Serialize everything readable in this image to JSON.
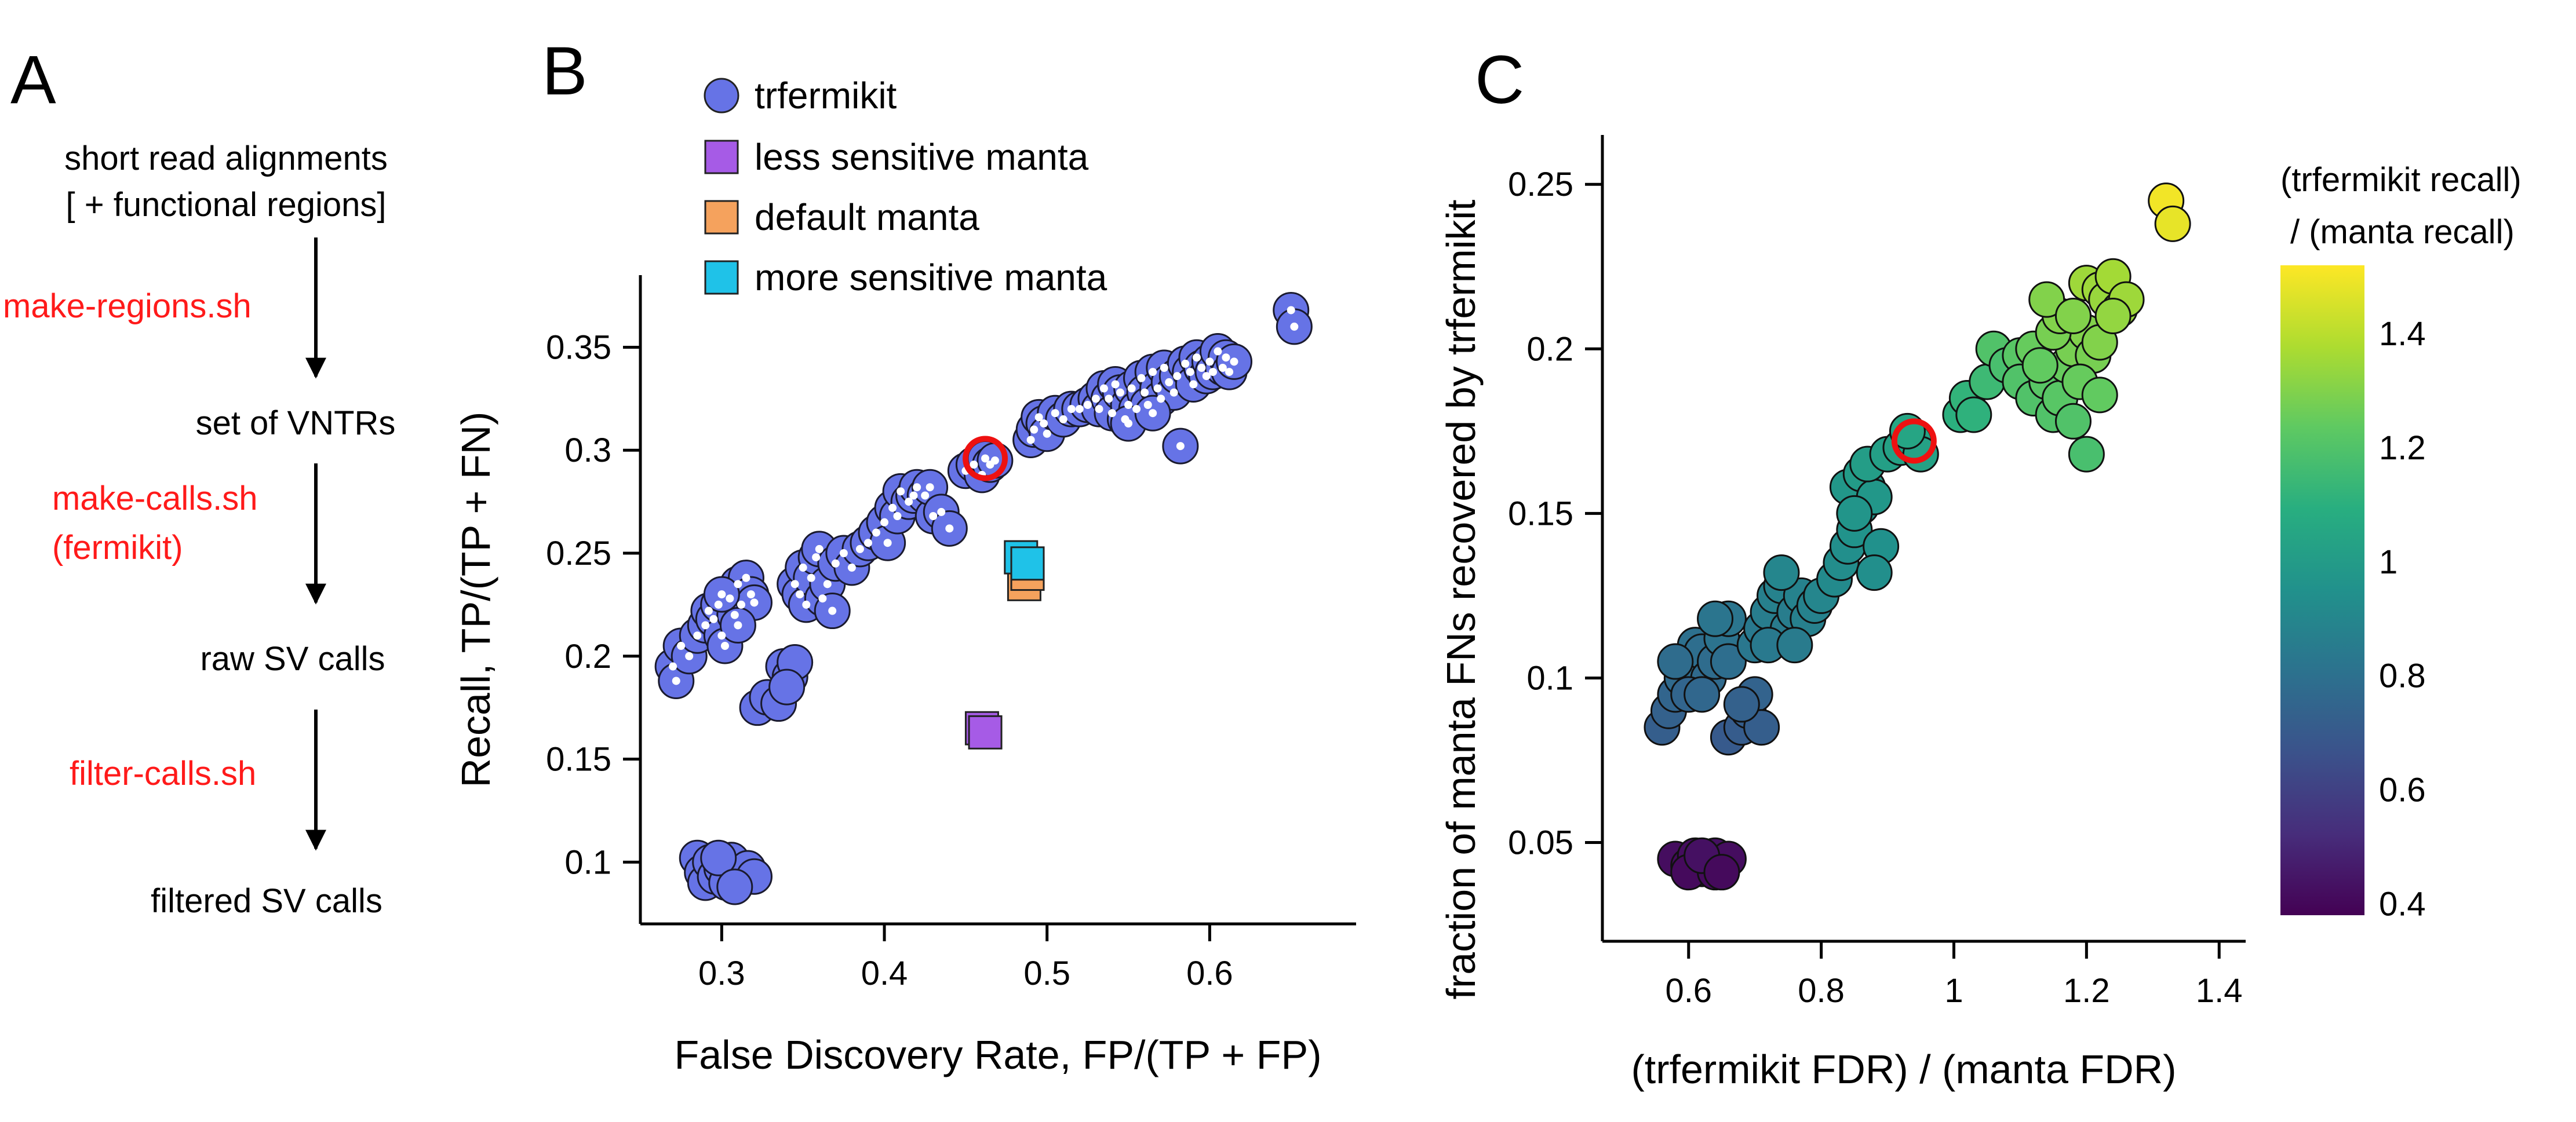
{
  "panel_labels": [
    "A",
    "B",
    "C"
  ],
  "flow": {
    "steps": [
      "short read alignments",
      "[ + functional regions]",
      "set of VNTRs",
      "raw SV calls",
      "filtered SV calls"
    ],
    "scripts": [
      "make-regions.sh",
      "make-calls.sh",
      "(fermikit)",
      "filter-calls.sh"
    ],
    "script_color": "#ff1a1a"
  },
  "chart_data": [
    {
      "type": "scatter",
      "panel": "B",
      "xlabel": "False Discovery Rate, FP/(TP + FP)",
      "ylabel": "Recall, TP/(TP + FN)",
      "xlim": [
        0.25,
        0.69
      ],
      "ylim": [
        0.07,
        0.385
      ],
      "xticks": [
        0.3,
        0.4,
        0.5,
        0.6
      ],
      "yticks": [
        0.1,
        0.15,
        0.2,
        0.25,
        0.3,
        0.35
      ],
      "xtick_labels": [
        "0.3",
        "0.4",
        "0.5",
        "0.6"
      ],
      "ytick_labels": [
        "0.1",
        "0.15",
        "0.2",
        "0.25",
        "0.3",
        "0.35"
      ],
      "legend": {
        "placement": "top-center",
        "entries": [
          {
            "name": "trfermikit",
            "marker": "circle",
            "color": "#6673e6"
          },
          {
            "name": "less sensitive manta",
            "marker": "square",
            "color": "#a65be6"
          },
          {
            "name": "default manta",
            "marker": "square",
            "color": "#f5a25d"
          },
          {
            "name": "more sensitive manta",
            "marker": "square",
            "color": "#1fc2e8"
          }
        ]
      },
      "series": [
        {
          "name": "trfermikit",
          "marker": "circle",
          "color": "#6673e6",
          "points": [
            [
              0.27,
              0.195
            ],
            [
              0.272,
              0.188
            ],
            [
              0.275,
              0.205
            ],
            [
              0.28,
              0.2
            ],
            [
              0.285,
              0.21
            ],
            [
              0.29,
              0.215
            ],
            [
              0.292,
              0.222
            ],
            [
              0.295,
              0.218
            ],
            [
              0.298,
              0.225
            ],
            [
              0.3,
              0.21
            ],
            [
              0.302,
              0.205
            ],
            [
              0.305,
              0.228
            ],
            [
              0.308,
              0.22
            ],
            [
              0.31,
              0.235
            ],
            [
              0.312,
              0.225
            ],
            [
              0.315,
              0.238
            ],
            [
              0.318,
              0.23
            ],
            [
              0.32,
              0.226
            ],
            [
              0.31,
              0.215
            ],
            [
              0.3,
              0.23
            ],
            [
              0.322,
              0.175
            ],
            [
              0.328,
              0.18
            ],
            [
              0.335,
              0.177
            ],
            [
              0.338,
              0.195
            ],
            [
              0.342,
              0.19
            ],
            [
              0.345,
              0.197
            ],
            [
              0.34,
              0.185
            ],
            [
              0.345,
              0.235
            ],
            [
              0.348,
              0.23
            ],
            [
              0.35,
              0.243
            ],
            [
              0.352,
              0.225
            ],
            [
              0.355,
              0.238
            ],
            [
              0.358,
              0.248
            ],
            [
              0.36,
              0.252
            ],
            [
              0.362,
              0.228
            ],
            [
              0.365,
              0.235
            ],
            [
              0.37,
              0.245
            ],
            [
              0.368,
              0.222
            ],
            [
              0.375,
              0.25
            ],
            [
              0.38,
              0.243
            ],
            [
              0.385,
              0.252
            ],
            [
              0.39,
              0.255
            ],
            [
              0.395,
              0.26
            ],
            [
              0.4,
              0.265
            ],
            [
              0.402,
              0.255
            ],
            [
              0.405,
              0.272
            ],
            [
              0.408,
              0.268
            ],
            [
              0.41,
              0.28
            ],
            [
              0.415,
              0.275
            ],
            [
              0.418,
              0.278
            ],
            [
              0.42,
              0.282
            ],
            [
              0.425,
              0.278
            ],
            [
              0.43,
              0.268
            ],
            [
              0.428,
              0.282
            ],
            [
              0.435,
              0.27
            ],
            [
              0.44,
              0.262
            ],
            [
              0.45,
              0.29
            ],
            [
              0.455,
              0.293
            ],
            [
              0.46,
              0.288
            ],
            [
              0.462,
              0.296
            ],
            [
              0.465,
              0.293
            ],
            [
              0.468,
              0.295
            ],
            [
              0.49,
              0.305
            ],
            [
              0.492,
              0.31
            ],
            [
              0.495,
              0.316
            ],
            [
              0.498,
              0.313
            ],
            [
              0.5,
              0.308
            ],
            [
              0.505,
              0.318
            ],
            [
              0.51,
              0.315
            ],
            [
              0.515,
              0.32
            ],
            [
              0.52,
              0.32
            ],
            [
              0.525,
              0.322
            ],
            [
              0.53,
              0.325
            ],
            [
              0.532,
              0.32
            ],
            [
              0.535,
              0.33
            ],
            [
              0.538,
              0.325
            ],
            [
              0.54,
              0.318
            ],
            [
              0.542,
              0.332
            ],
            [
              0.545,
              0.328
            ],
            [
              0.548,
              0.315
            ],
            [
              0.55,
              0.322
            ],
            [
              0.552,
              0.33
            ],
            [
              0.555,
              0.32
            ],
            [
              0.558,
              0.335
            ],
            [
              0.56,
              0.328
            ],
            [
              0.562,
              0.322
            ],
            [
              0.565,
              0.338
            ],
            [
              0.568,
              0.33
            ],
            [
              0.57,
              0.325
            ],
            [
              0.572,
              0.34
            ],
            [
              0.575,
              0.333
            ],
            [
              0.578,
              0.328
            ],
            [
              0.58,
              0.336
            ],
            [
              0.582,
              0.302
            ],
            [
              0.585,
              0.342
            ],
            [
              0.588,
              0.338
            ],
            [
              0.59,
              0.332
            ],
            [
              0.592,
              0.345
            ],
            [
              0.595,
              0.34
            ],
            [
              0.598,
              0.336
            ],
            [
              0.6,
              0.343
            ],
            [
              0.602,
              0.338
            ],
            [
              0.605,
              0.348
            ],
            [
              0.608,
              0.34
            ],
            [
              0.61,
              0.345
            ],
            [
              0.612,
              0.338
            ],
            [
              0.615,
              0.343
            ],
            [
              0.55,
              0.313
            ],
            [
              0.565,
              0.318
            ],
            [
              0.65,
              0.368
            ],
            [
              0.652,
              0.36
            ],
            [
              0.285,
              0.102
            ],
            [
              0.288,
              0.095
            ],
            [
              0.29,
              0.09
            ],
            [
              0.293,
              0.1
            ],
            [
              0.296,
              0.093
            ],
            [
              0.3,
              0.097
            ],
            [
              0.303,
              0.09
            ],
            [
              0.306,
              0.101
            ],
            [
              0.31,
              0.094
            ],
            [
              0.313,
              0.092
            ],
            [
              0.316,
              0.097
            ],
            [
              0.32,
              0.093
            ],
            [
              0.298,
              0.102
            ],
            [
              0.308,
              0.088
            ]
          ]
        },
        {
          "name": "less sensitive manta",
          "marker": "square",
          "color": "#a65be6",
          "points": [
            [
              0.46,
              0.165
            ],
            [
              0.462,
              0.163
            ]
          ]
        },
        {
          "name": "default manta",
          "marker": "square",
          "color": "#f5a25d",
          "points": [
            [
              0.486,
              0.235
            ],
            [
              0.488,
              0.24
            ]
          ]
        },
        {
          "name": "more sensitive manta",
          "marker": "square",
          "color": "#1fc2e8",
          "points": [
            [
              0.484,
              0.248
            ],
            [
              0.488,
              0.245
            ]
          ]
        }
      ],
      "highlight": {
        "x": 0.462,
        "y": 0.296,
        "color": "#ee1111"
      }
    },
    {
      "type": "scatter",
      "panel": "C",
      "xlabel": "(trfermikit FDR) / (manta FDR)",
      "ylabel": "fraction of manta FNs recovered by trfermikit",
      "xlim": [
        0.47,
        1.44
      ],
      "ylim": [
        0.02,
        0.265
      ],
      "xticks": [
        0.6,
        0.8,
        1.0,
        1.2,
        1.4
      ],
      "yticks": [
        0.05,
        0.1,
        0.15,
        0.2,
        0.25
      ],
      "xtick_labels": [
        "0.6",
        "0.8",
        "1",
        "1.2",
        "1.4"
      ],
      "ytick_labels": [
        "0.05",
        "0.1",
        "0.15",
        "0.2",
        "0.25"
      ],
      "colorbar": {
        "title_lines": [
          "(trfermikit recall)",
          "/ (manta recall)"
        ],
        "range": [
          0.38,
          1.52
        ],
        "ticks": [
          0.4,
          0.6,
          0.8,
          1.0,
          1.2,
          1.4
        ],
        "tick_labels": [
          "0.4",
          "0.6",
          "0.8",
          "1",
          "1.2",
          "1.4"
        ],
        "colormap": "viridis",
        "stops": [
          "#440154",
          "#472d7b",
          "#3b528b",
          "#2c728e",
          "#21918c",
          "#28ae80",
          "#5ec962",
          "#addc30",
          "#fde725"
        ]
      },
      "points": [
        [
          0.58,
          0.045,
          0.42
        ],
        [
          0.6,
          0.043,
          0.41
        ],
        [
          0.61,
          0.046,
          0.42
        ],
        [
          0.62,
          0.042,
          0.41
        ],
        [
          0.63,
          0.044,
          0.42
        ],
        [
          0.64,
          0.046,
          0.43
        ],
        [
          0.65,
          0.043,
          0.42
        ],
        [
          0.66,
          0.045,
          0.42
        ],
        [
          0.6,
          0.041,
          0.41
        ],
        [
          0.64,
          0.041,
          0.41
        ],
        [
          0.62,
          0.046,
          0.43
        ],
        [
          0.65,
          0.041,
          0.41
        ],
        [
          0.56,
          0.085,
          0.72
        ],
        [
          0.57,
          0.09,
          0.73
        ],
        [
          0.58,
          0.095,
          0.75
        ],
        [
          0.59,
          0.1,
          0.77
        ],
        [
          0.6,
          0.105,
          0.78
        ],
        [
          0.61,
          0.11,
          0.8
        ],
        [
          0.62,
          0.108,
          0.79
        ],
        [
          0.63,
          0.1,
          0.77
        ],
        [
          0.64,
          0.105,
          0.78
        ],
        [
          0.65,
          0.112,
          0.81
        ],
        [
          0.66,
          0.118,
          0.82
        ],
        [
          0.6,
          0.095,
          0.75
        ],
        [
          0.62,
          0.095,
          0.76
        ],
        [
          0.58,
          0.105,
          0.78
        ],
        [
          0.66,
          0.105,
          0.79
        ],
        [
          0.64,
          0.118,
          0.82
        ],
        [
          0.66,
          0.082,
          0.7
        ],
        [
          0.68,
          0.085,
          0.71
        ],
        [
          0.69,
          0.09,
          0.72
        ],
        [
          0.7,
          0.095,
          0.74
        ],
        [
          0.71,
          0.085,
          0.72
        ],
        [
          0.68,
          0.092,
          0.73
        ],
        [
          0.7,
          0.11,
          0.83
        ],
        [
          0.71,
          0.115,
          0.84
        ],
        [
          0.72,
          0.12,
          0.86
        ],
        [
          0.73,
          0.125,
          0.87
        ],
        [
          0.74,
          0.128,
          0.88
        ],
        [
          0.75,
          0.115,
          0.85
        ],
        [
          0.76,
          0.12,
          0.86
        ],
        [
          0.77,
          0.125,
          0.88
        ],
        [
          0.78,
          0.118,
          0.87
        ],
        [
          0.72,
          0.11,
          0.84
        ],
        [
          0.74,
          0.132,
          0.9
        ],
        [
          0.76,
          0.11,
          0.85
        ],
        [
          0.79,
          0.122,
          0.88
        ],
        [
          0.8,
          0.125,
          0.9
        ],
        [
          0.82,
          0.13,
          0.92
        ],
        [
          0.83,
          0.135,
          0.93
        ],
        [
          0.84,
          0.14,
          0.94
        ],
        [
          0.85,
          0.145,
          0.96
        ],
        [
          0.86,
          0.152,
          0.97
        ],
        [
          0.87,
          0.158,
          0.98
        ],
        [
          0.84,
          0.158,
          0.98
        ],
        [
          0.86,
          0.162,
          1.0
        ],
        [
          0.88,
          0.155,
          0.98
        ],
        [
          0.85,
          0.15,
          0.97
        ],
        [
          0.89,
          0.14,
          0.95
        ],
        [
          0.88,
          0.132,
          0.94
        ],
        [
          0.87,
          0.165,
          1.01
        ],
        [
          0.9,
          0.168,
          1.02
        ],
        [
          0.92,
          0.17,
          1.03
        ],
        [
          0.94,
          0.172,
          1.04
        ],
        [
          0.95,
          0.168,
          1.03
        ],
        [
          0.93,
          0.175,
          1.05
        ],
        [
          1.01,
          0.18,
          1.1
        ],
        [
          1.02,
          0.185,
          1.12
        ],
        [
          1.03,
          0.18,
          1.11
        ],
        [
          1.05,
          0.19,
          1.15
        ],
        [
          1.06,
          0.2,
          1.2
        ],
        [
          1.08,
          0.195,
          1.18
        ],
        [
          1.1,
          0.198,
          1.22
        ],
        [
          1.12,
          0.2,
          1.25
        ],
        [
          1.1,
          0.19,
          1.2
        ],
        [
          1.12,
          0.185,
          1.2
        ],
        [
          1.14,
          0.19,
          1.22
        ],
        [
          1.15,
          0.18,
          1.2
        ],
        [
          1.16,
          0.185,
          1.22
        ],
        [
          1.17,
          0.195,
          1.25
        ],
        [
          1.18,
          0.2,
          1.28
        ],
        [
          1.2,
          0.205,
          1.3
        ],
        [
          1.21,
          0.198,
          1.28
        ],
        [
          1.22,
          0.202,
          1.3
        ],
        [
          1.15,
          0.205,
          1.28
        ],
        [
          1.16,
          0.21,
          1.3
        ],
        [
          1.14,
          0.215,
          1.3
        ],
        [
          1.13,
          0.195,
          1.24
        ],
        [
          1.19,
          0.19,
          1.25
        ],
        [
          1.22,
          0.186,
          1.24
        ],
        [
          1.18,
          0.178,
          1.2
        ],
        [
          1.2,
          0.168,
          1.18
        ],
        [
          1.18,
          0.21,
          1.3
        ],
        [
          1.2,
          0.22,
          1.35
        ],
        [
          1.22,
          0.218,
          1.35
        ],
        [
          1.23,
          0.215,
          1.34
        ],
        [
          1.24,
          0.222,
          1.36
        ],
        [
          1.25,
          0.212,
          1.34
        ],
        [
          1.26,
          0.215,
          1.35
        ],
        [
          1.24,
          0.21,
          1.33
        ],
        [
          1.32,
          0.245,
          1.5
        ],
        [
          1.33,
          0.238,
          1.48
        ]
      ],
      "highlight": {
        "x": 0.94,
        "y": 0.172,
        "color": "#ee1111"
      }
    }
  ]
}
